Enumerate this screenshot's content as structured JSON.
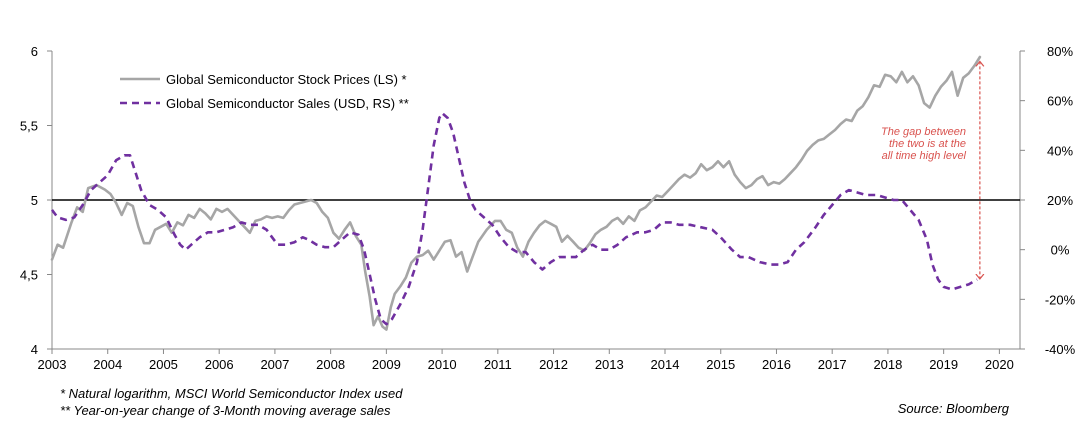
{
  "chart_data": {
    "type": "line",
    "x_ticks": [
      "2003",
      "2004",
      "2005",
      "2006",
      "2007",
      "2008",
      "2009",
      "2010",
      "2011",
      "2012",
      "2013",
      "2014",
      "2015",
      "2016",
      "2017",
      "2018",
      "2019",
      "2020"
    ],
    "left_axis": {
      "ticks": [
        "4",
        "4,5",
        "5",
        "5,5",
        "6"
      ],
      "range": [
        4,
        6
      ]
    },
    "right_axis": {
      "ticks": [
        "-40%",
        "-20%",
        "0%",
        "20%",
        "40%",
        "60%",
        "80%"
      ],
      "range": [
        -40,
        80
      ]
    },
    "series": [
      {
        "name": "Global Semiconductor Stock Prices (LS) *",
        "axis": "left",
        "color": "#a6a6a6",
        "style": "solid",
        "points": [
          [
            2003.0,
            4.6
          ],
          [
            2003.1,
            4.7
          ],
          [
            2003.2,
            4.68
          ],
          [
            2003.35,
            4.85
          ],
          [
            2003.45,
            4.95
          ],
          [
            2003.55,
            4.92
          ],
          [
            2003.65,
            5.08
          ],
          [
            2003.8,
            5.1
          ],
          [
            2003.95,
            5.07
          ],
          [
            2004.05,
            5.04
          ],
          [
            2004.15,
            4.98
          ],
          [
            2004.25,
            4.9
          ],
          [
            2004.35,
            4.98
          ],
          [
            2004.45,
            4.96
          ],
          [
            2004.55,
            4.82
          ],
          [
            2004.65,
            4.71
          ],
          [
            2004.75,
            4.71
          ],
          [
            2004.85,
            4.8
          ],
          [
            2004.95,
            4.82
          ],
          [
            2005.05,
            4.84
          ],
          [
            2005.15,
            4.78
          ],
          [
            2005.25,
            4.85
          ],
          [
            2005.35,
            4.83
          ],
          [
            2005.45,
            4.9
          ],
          [
            2005.55,
            4.88
          ],
          [
            2005.65,
            4.94
          ],
          [
            2005.75,
            4.91
          ],
          [
            2005.85,
            4.87
          ],
          [
            2005.95,
            4.94
          ],
          [
            2006.05,
            4.92
          ],
          [
            2006.15,
            4.94
          ],
          [
            2006.25,
            4.9
          ],
          [
            2006.35,
            4.86
          ],
          [
            2006.45,
            4.82
          ],
          [
            2006.55,
            4.78
          ],
          [
            2006.65,
            4.86
          ],
          [
            2006.75,
            4.87
          ],
          [
            2006.85,
            4.89
          ],
          [
            2006.95,
            4.88
          ],
          [
            2007.05,
            4.89
          ],
          [
            2007.15,
            4.88
          ],
          [
            2007.25,
            4.93
          ],
          [
            2007.35,
            4.97
          ],
          [
            2007.45,
            4.98
          ],
          [
            2007.55,
            4.99
          ],
          [
            2007.65,
            5.0
          ],
          [
            2007.75,
            4.98
          ],
          [
            2007.85,
            4.92
          ],
          [
            2007.95,
            4.88
          ],
          [
            2008.05,
            4.78
          ],
          [
            2008.15,
            4.74
          ],
          [
            2008.25,
            4.8
          ],
          [
            2008.35,
            4.85
          ],
          [
            2008.45,
            4.76
          ],
          [
            2008.55,
            4.7
          ],
          [
            2008.62,
            4.52
          ],
          [
            2008.7,
            4.35
          ],
          [
            2008.77,
            4.16
          ],
          [
            2008.85,
            4.22
          ],
          [
            2008.93,
            4.15
          ],
          [
            2009.0,
            4.13
          ],
          [
            2009.08,
            4.28
          ],
          [
            2009.15,
            4.37
          ],
          [
            2009.25,
            4.42
          ],
          [
            2009.35,
            4.48
          ],
          [
            2009.45,
            4.58
          ],
          [
            2009.55,
            4.62
          ],
          [
            2009.65,
            4.63
          ],
          [
            2009.75,
            4.66
          ],
          [
            2009.85,
            4.6
          ],
          [
            2009.95,
            4.66
          ],
          [
            2010.05,
            4.72
          ],
          [
            2010.15,
            4.73
          ],
          [
            2010.25,
            4.62
          ],
          [
            2010.35,
            4.65
          ],
          [
            2010.45,
            4.52
          ],
          [
            2010.55,
            4.62
          ],
          [
            2010.65,
            4.72
          ],
          [
            2010.8,
            4.8
          ],
          [
            2010.95,
            4.86
          ],
          [
            2011.05,
            4.86
          ],
          [
            2011.15,
            4.8
          ],
          [
            2011.25,
            4.78
          ],
          [
            2011.35,
            4.68
          ],
          [
            2011.45,
            4.62
          ],
          [
            2011.55,
            4.72
          ],
          [
            2011.65,
            4.78
          ],
          [
            2011.75,
            4.83
          ],
          [
            2011.85,
            4.86
          ],
          [
            2011.95,
            4.84
          ],
          [
            2012.05,
            4.82
          ],
          [
            2012.15,
            4.72
          ],
          [
            2012.25,
            4.76
          ],
          [
            2012.35,
            4.72
          ],
          [
            2012.45,
            4.68
          ],
          [
            2012.55,
            4.66
          ],
          [
            2012.65,
            4.71
          ],
          [
            2012.75,
            4.77
          ],
          [
            2012.85,
            4.8
          ],
          [
            2012.95,
            4.82
          ],
          [
            2013.05,
            4.86
          ],
          [
            2013.15,
            4.88
          ],
          [
            2013.25,
            4.84
          ],
          [
            2013.35,
            4.89
          ],
          [
            2013.45,
            4.86
          ],
          [
            2013.55,
            4.93
          ],
          [
            2013.65,
            4.95
          ],
          [
            2013.75,
            4.99
          ],
          [
            2013.85,
            5.03
          ],
          [
            2013.95,
            5.02
          ],
          [
            2014.05,
            5.06
          ],
          [
            2014.15,
            5.1
          ],
          [
            2014.25,
            5.14
          ],
          [
            2014.35,
            5.17
          ],
          [
            2014.45,
            5.15
          ],
          [
            2014.55,
            5.18
          ],
          [
            2014.65,
            5.24
          ],
          [
            2014.75,
            5.2
          ],
          [
            2014.85,
            5.22
          ],
          [
            2014.95,
            5.26
          ],
          [
            2015.05,
            5.22
          ],
          [
            2015.15,
            5.26
          ],
          [
            2015.25,
            5.17
          ],
          [
            2015.35,
            5.12
          ],
          [
            2015.45,
            5.08
          ],
          [
            2015.55,
            5.1
          ],
          [
            2015.65,
            5.14
          ],
          [
            2015.75,
            5.16
          ],
          [
            2015.85,
            5.1
          ],
          [
            2015.95,
            5.12
          ],
          [
            2016.05,
            5.11
          ],
          [
            2016.15,
            5.14
          ],
          [
            2016.25,
            5.18
          ],
          [
            2016.35,
            5.22
          ],
          [
            2016.45,
            5.27
          ],
          [
            2016.55,
            5.33
          ],
          [
            2016.65,
            5.37
          ],
          [
            2016.75,
            5.4
          ],
          [
            2016.85,
            5.41
          ],
          [
            2016.95,
            5.44
          ],
          [
            2017.05,
            5.47
          ],
          [
            2017.15,
            5.51
          ],
          [
            2017.25,
            5.54
          ],
          [
            2017.35,
            5.53
          ],
          [
            2017.45,
            5.6
          ],
          [
            2017.55,
            5.63
          ],
          [
            2017.65,
            5.69
          ],
          [
            2017.75,
            5.77
          ],
          [
            2017.85,
            5.76
          ],
          [
            2017.95,
            5.84
          ],
          [
            2018.05,
            5.83
          ],
          [
            2018.15,
            5.79
          ],
          [
            2018.25,
            5.86
          ],
          [
            2018.35,
            5.79
          ],
          [
            2018.45,
            5.83
          ],
          [
            2018.55,
            5.77
          ],
          [
            2018.65,
            5.65
          ],
          [
            2018.75,
            5.62
          ],
          [
            2018.85,
            5.7
          ],
          [
            2018.95,
            5.76
          ],
          [
            2019.05,
            5.8
          ],
          [
            2019.15,
            5.86
          ],
          [
            2019.25,
            5.7
          ],
          [
            2019.35,
            5.82
          ],
          [
            2019.45,
            5.85
          ],
          [
            2019.55,
            5.9
          ],
          [
            2019.65,
            5.96
          ]
        ]
      },
      {
        "name": "Global Semiconductor Sales (USD, RS) **",
        "axis": "right",
        "color": "#7030a0",
        "style": "dashed",
        "points": [
          [
            2003.0,
            16
          ],
          [
            2003.1,
            13
          ],
          [
            2003.25,
            12
          ],
          [
            2003.4,
            13
          ],
          [
            2003.55,
            18
          ],
          [
            2003.7,
            24
          ],
          [
            2003.85,
            27
          ],
          [
            2004.0,
            30
          ],
          [
            2004.15,
            36
          ],
          [
            2004.3,
            38
          ],
          [
            2004.4,
            38
          ],
          [
            2004.5,
            31
          ],
          [
            2004.6,
            24
          ],
          [
            2004.75,
            18
          ],
          [
            2004.9,
            16
          ],
          [
            2005.05,
            13
          ],
          [
            2005.2,
            6
          ],
          [
            2005.3,
            2
          ],
          [
            2005.4,
            0
          ],
          [
            2005.5,
            2
          ],
          [
            2005.65,
            5
          ],
          [
            2005.8,
            7
          ],
          [
            2005.95,
            7
          ],
          [
            2006.1,
            8
          ],
          [
            2006.25,
            9
          ],
          [
            2006.4,
            11
          ],
          [
            2006.55,
            10
          ],
          [
            2006.7,
            10
          ],
          [
            2006.85,
            8
          ],
          [
            2006.95,
            5
          ],
          [
            2007.05,
            2
          ],
          [
            2007.2,
            2
          ],
          [
            2007.35,
            3
          ],
          [
            2007.5,
            5
          ],
          [
            2007.6,
            4
          ],
          [
            2007.75,
            2
          ],
          [
            2007.9,
            1
          ],
          [
            2008.05,
            1
          ],
          [
            2008.2,
            4
          ],
          [
            2008.35,
            7
          ],
          [
            2008.5,
            6
          ],
          [
            2008.6,
            0
          ],
          [
            2008.7,
            -10
          ],
          [
            2008.8,
            -20
          ],
          [
            2008.9,
            -28
          ],
          [
            2009.0,
            -30
          ],
          [
            2009.1,
            -28
          ],
          [
            2009.25,
            -22
          ],
          [
            2009.4,
            -15
          ],
          [
            2009.55,
            -5
          ],
          [
            2009.65,
            8
          ],
          [
            2009.75,
            25
          ],
          [
            2009.85,
            42
          ],
          [
            2009.95,
            53
          ],
          [
            2010.0,
            55
          ],
          [
            2010.1,
            53
          ],
          [
            2010.2,
            47
          ],
          [
            2010.3,
            37
          ],
          [
            2010.4,
            27
          ],
          [
            2010.5,
            20
          ],
          [
            2010.6,
            16
          ],
          [
            2010.75,
            13
          ],
          [
            2010.9,
            10
          ],
          [
            2011.05,
            5
          ],
          [
            2011.2,
            1
          ],
          [
            2011.35,
            -1
          ],
          [
            2011.5,
            -1
          ],
          [
            2011.65,
            -5
          ],
          [
            2011.8,
            -8
          ],
          [
            2011.95,
            -5
          ],
          [
            2012.1,
            -3
          ],
          [
            2012.25,
            -3
          ],
          [
            2012.4,
            -3
          ],
          [
            2012.55,
            0
          ],
          [
            2012.7,
            2
          ],
          [
            2012.85,
            0
          ],
          [
            2013.0,
            0
          ],
          [
            2013.15,
            2
          ],
          [
            2013.3,
            5
          ],
          [
            2013.5,
            7
          ],
          [
            2013.65,
            7
          ],
          [
            2013.8,
            8
          ],
          [
            2013.95,
            11
          ],
          [
            2014.1,
            11
          ],
          [
            2014.25,
            10
          ],
          [
            2014.45,
            10
          ],
          [
            2014.65,
            9
          ],
          [
            2014.85,
            8
          ],
          [
            2015.0,
            5
          ],
          [
            2015.2,
            0
          ],
          [
            2015.35,
            -3
          ],
          [
            2015.5,
            -3
          ],
          [
            2015.7,
            -5
          ],
          [
            2015.9,
            -6
          ],
          [
            2016.05,
            -6
          ],
          [
            2016.2,
            -5
          ],
          [
            2016.35,
            0
          ],
          [
            2016.5,
            3
          ],
          [
            2016.7,
            9
          ],
          [
            2016.85,
            14
          ],
          [
            2017.0,
            18
          ],
          [
            2017.15,
            22
          ],
          [
            2017.3,
            24
          ],
          [
            2017.45,
            23
          ],
          [
            2017.6,
            22
          ],
          [
            2017.8,
            22
          ],
          [
            2017.95,
            21
          ],
          [
            2018.1,
            20
          ],
          [
            2018.25,
            20
          ],
          [
            2018.4,
            16
          ],
          [
            2018.55,
            12
          ],
          [
            2018.7,
            4
          ],
          [
            2018.8,
            -6
          ],
          [
            2018.9,
            -12
          ],
          [
            2019.0,
            -15
          ],
          [
            2019.15,
            -16
          ],
          [
            2019.3,
            -15
          ],
          [
            2019.45,
            -14
          ],
          [
            2019.6,
            -12
          ]
        ]
      }
    ],
    "legend_position": "top-left",
    "grid": false,
    "reference_line": {
      "axis": "left",
      "value": 5
    },
    "annotation": {
      "lines": [
        "The gap  between",
        "the two is at the",
        "all time high  level"
      ],
      "x": 2019.65,
      "from_left_value": 5.93,
      "to_left_value": 4.47,
      "color": "#d9534f"
    }
  },
  "footnotes": {
    "note1": "* Natural logarithm, MSCI World Semiconductor Index used",
    "note2": "** Year-on-year change of 3-Month moving average sales"
  },
  "source": "Source: Bloomberg"
}
